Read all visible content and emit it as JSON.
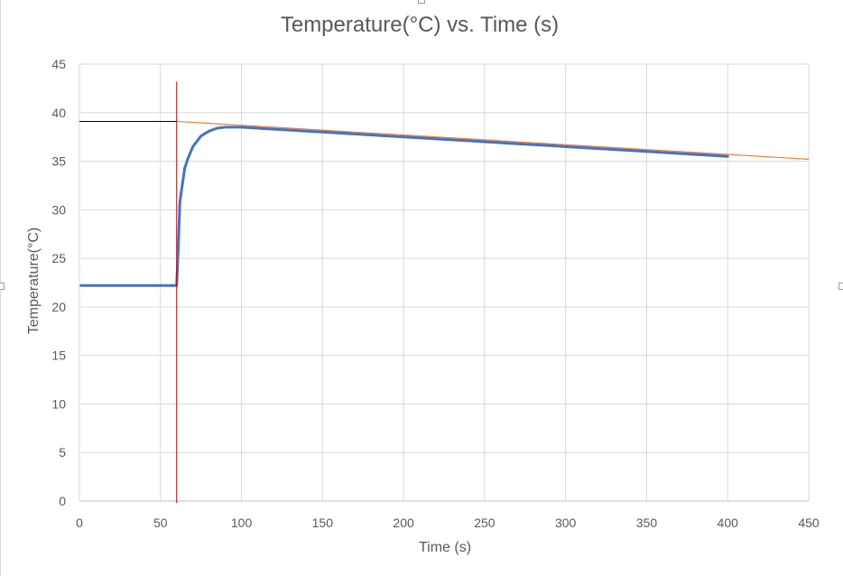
{
  "chart_data": {
    "type": "line",
    "title": "Temperature(°C) vs. Time (s)",
    "xlabel": "Time (s)",
    "ylabel": "Temperature(°C)",
    "xlim": [
      0,
      450
    ],
    "ylim": [
      0,
      45
    ],
    "x_ticks": [
      0,
      50,
      100,
      150,
      200,
      250,
      300,
      350,
      400,
      450
    ],
    "y_ticks": [
      0,
      5,
      10,
      15,
      20,
      25,
      30,
      35,
      40,
      45
    ],
    "grid": true,
    "legend": "none",
    "series": [
      {
        "color": "#4472c4",
        "x": [
          1,
          10,
          20,
          30,
          40,
          50,
          55,
          60,
          61,
          62,
          63,
          65,
          67,
          70,
          75,
          80,
          85,
          90,
          95,
          100,
          110,
          120,
          130,
          140,
          150,
          170,
          190,
          210,
          230,
          250,
          270,
          290,
          310,
          330,
          350,
          370,
          390,
          400
        ],
        "y": [
          22.2,
          22.2,
          22.2,
          22.2,
          22.2,
          22.2,
          22.2,
          22.2,
          26.0,
          30.8,
          32.0,
          34.3,
          35.3,
          36.5,
          37.6,
          38.1,
          38.4,
          38.5,
          38.5,
          38.5,
          38.4,
          38.3,
          38.2,
          38.1,
          38.0,
          37.8,
          37.6,
          37.4,
          37.2,
          37.0,
          36.8,
          36.6,
          36.4,
          36.2,
          36.0,
          35.8,
          35.6,
          35.5
        ]
      }
    ],
    "trendline": {
      "color": "#ed7d31",
      "x": [
        60,
        450
      ],
      "y": [
        39.1,
        35.2
      ]
    },
    "markers": {
      "vertical_line": {
        "x": 60,
        "y_top": 43.2,
        "color": "#c00000"
      },
      "horizontal_line": {
        "y": 39.1,
        "x_from": 0,
        "x_to": 60,
        "color": "#000000"
      }
    }
  }
}
